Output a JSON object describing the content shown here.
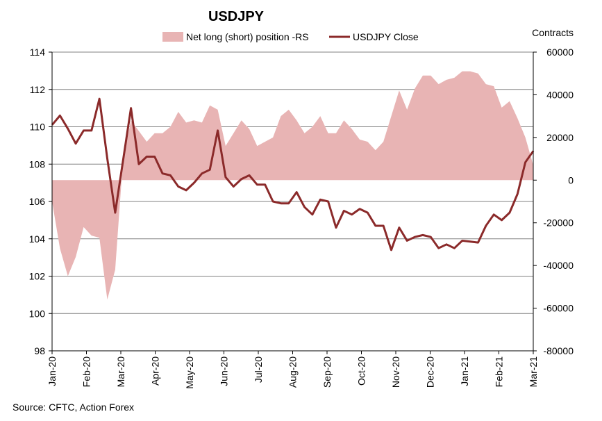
{
  "chart_data": {
    "type": "line",
    "title": "USDJPY",
    "y2label": "Contracts",
    "source": "Source: CFTC, Action Forex",
    "x_labels": [
      "Jan-20",
      "Feb-20",
      "Mar-20",
      "Apr-20",
      "May-20",
      "Jun-20",
      "Jul-20",
      "Aug-20",
      "Sep-20",
      "Oct-20",
      "Nov-20",
      "Dec-20",
      "Jan-21",
      "Feb-21",
      "Mar-21"
    ],
    "ylim": [
      98,
      114
    ],
    "yticks": [
      98,
      100,
      102,
      104,
      106,
      108,
      110,
      112,
      114
    ],
    "y2lim": [
      -80000,
      60000
    ],
    "y2ticks": [
      "-80000",
      "-60000",
      "-40000",
      "-20000",
      "0",
      "20000",
      "40000",
      "60000"
    ],
    "legend_position": "top",
    "series": [
      {
        "name": "Net long (short) position -RS",
        "type": "area",
        "axis": "right",
        "color": "#e8b4b4",
        "values": [
          -10000,
          -32000,
          -45000,
          -36000,
          -22000,
          -26000,
          -27000,
          -56000,
          -42000,
          10000,
          28000,
          23000,
          18000,
          22000,
          22000,
          25000,
          32000,
          27000,
          28000,
          27000,
          35000,
          33000,
          16000,
          22000,
          28000,
          24000,
          16000,
          18000,
          20000,
          30000,
          33000,
          28000,
          22000,
          25000,
          30000,
          22000,
          22000,
          28000,
          24000,
          19000,
          18000,
          14000,
          18000,
          30000,
          42000,
          33000,
          43000,
          49000,
          49000,
          45000,
          47000,
          48000,
          51000,
          51000,
          50000,
          45000,
          44000,
          34000,
          37000,
          29000,
          20000,
          7000
        ]
      },
      {
        "name": "USDJPY Close",
        "type": "line",
        "axis": "left",
        "color": "#8b2a2a",
        "values": [
          110.1,
          110.6,
          109.9,
          109.1,
          109.8,
          109.8,
          111.5,
          108.3,
          105.4,
          108.2,
          111.0,
          108.0,
          108.4,
          108.4,
          107.5,
          107.4,
          106.8,
          106.6,
          107.0,
          107.5,
          107.7,
          109.8,
          107.3,
          106.8,
          107.2,
          107.4,
          106.9,
          106.9,
          106.0,
          105.9,
          105.9,
          106.5,
          105.7,
          105.3,
          106.1,
          106.0,
          104.6,
          105.5,
          105.3,
          105.6,
          105.4,
          104.7,
          104.7,
          103.4,
          104.6,
          103.9,
          104.1,
          104.2,
          104.1,
          103.5,
          103.7,
          103.5,
          103.9,
          103.85,
          103.8,
          104.7,
          105.3,
          105.0,
          105.4,
          106.4,
          108.1,
          108.7
        ]
      }
    ]
  }
}
